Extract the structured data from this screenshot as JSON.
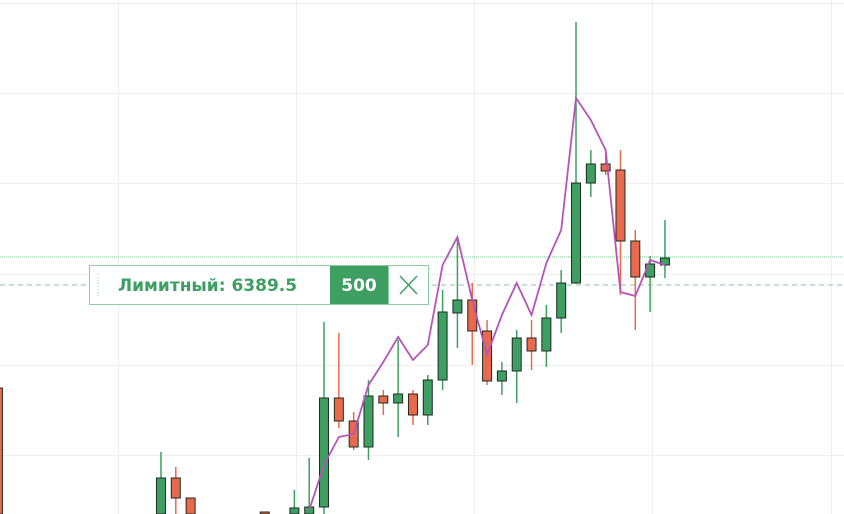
{
  "chart_data": {
    "type": "candlestick",
    "x": [
      -11,
      0,
      1,
      2,
      7,
      9,
      10,
      11,
      12,
      13,
      14,
      15,
      16,
      17,
      18,
      19,
      20,
      21,
      22,
      23,
      24,
      25,
      26,
      27,
      28,
      29,
      30,
      31,
      32,
      33,
      34
    ],
    "open": [
      6379.2,
      6366.6,
      6370.2,
      6368.2,
      6366.8,
      6366.6,
      6366.6,
      6367.3,
      6378.2,
      6375.9,
      6373.3,
      6378.4,
      6377.7,
      6378.6,
      6376.5,
      6380.0,
      6386.7,
      6388.0,
      6384.9,
      6379.9,
      6380.9,
      6384.2,
      6382.9,
      6386.2,
      6389.7,
      6399.7,
      6401.6,
      6401.0,
      6393.9,
      6390.3,
      6391.5
    ],
    "high": [
      6379.2,
      6372.8,
      6371.3,
      6368.2,
      6366.8,
      6369.0,
      6372.2,
      6385.8,
      6384.7,
      6376.8,
      6380.0,
      6379.0,
      6384.0,
      6379.0,
      6380.5,
      6389.0,
      6394.3,
      6389.7,
      6386.0,
      6381.8,
      6385.0,
      6386.0,
      6387.5,
      6391.0,
      6415.8,
      6403.0,
      6403.0,
      6403.0,
      6395.0,
      6392.4,
      6396.0
    ],
    "low": [
      6366.6,
      6366.6,
      6366.6,
      6366.6,
      6366.6,
      6366.6,
      6366.6,
      6366.6,
      6375.2,
      6373.0,
      6372.0,
      6376.5,
      6374.3,
      6375.5,
      6375.5,
      6379.0,
      6383.2,
      6381.5,
      6379.5,
      6378.5,
      6377.7,
      6381.0,
      6381.3,
      6384.7,
      6389.6,
      6398.3,
      6400.5,
      6388.5,
      6385.0,
      6386.8,
      6390.2
    ],
    "close": [
      6366.6,
      6370.2,
      6368.2,
      6366.6,
      6366.6,
      6367.2,
      6367.3,
      6378.2,
      6375.9,
      6373.3,
      6378.4,
      6377.7,
      6378.6,
      6376.5,
      6380.0,
      6386.8,
      6388.0,
      6384.9,
      6379.9,
      6380.9,
      6384.2,
      6382.9,
      6386.2,
      6389.7,
      6399.7,
      6401.6,
      6400.9,
      6393.9,
      6390.3,
      6391.6,
      6392.2
    ],
    "up_color": "#3f9f63",
    "down_color": "#e9694c",
    "line": {
      "color": "#b455b8",
      "x": [
        10,
        11,
        12,
        13,
        14,
        15,
        16,
        17,
        18,
        19,
        20,
        21,
        22,
        23,
        24,
        25,
        26,
        27,
        28,
        29,
        30,
        31,
        32,
        33,
        34
      ],
      "values": [
        6367.0,
        6371.5,
        6374.3,
        6374.6,
        6379.5,
        6381.8,
        6384.3,
        6382.0,
        6383.5,
        6391.5,
        6394.3,
        6388.0,
        6382.5,
        6386.5,
        6389.7,
        6386.5,
        6391.7,
        6395.0,
        6408.2,
        6406.0,
        6403.0,
        6388.8,
        6388.4,
        6392.0,
        6391.5
      ]
    },
    "xlim": [
      -10.86,
      46.08
    ],
    "ylim": [
      6366.6,
      6418
    ],
    "xticks": [
      -2.9,
      9.1,
      21.1,
      33.1,
      45.2
    ],
    "yticks": [
      6372.5,
      6381.5,
      6390.6,
      6399.7,
      6408.7,
      6417.7
    ],
    "grid": true,
    "last_price": 6392.3,
    "order": {
      "label": "Лимитный:",
      "price": 6389.5,
      "quantity": 500
    }
  }
}
